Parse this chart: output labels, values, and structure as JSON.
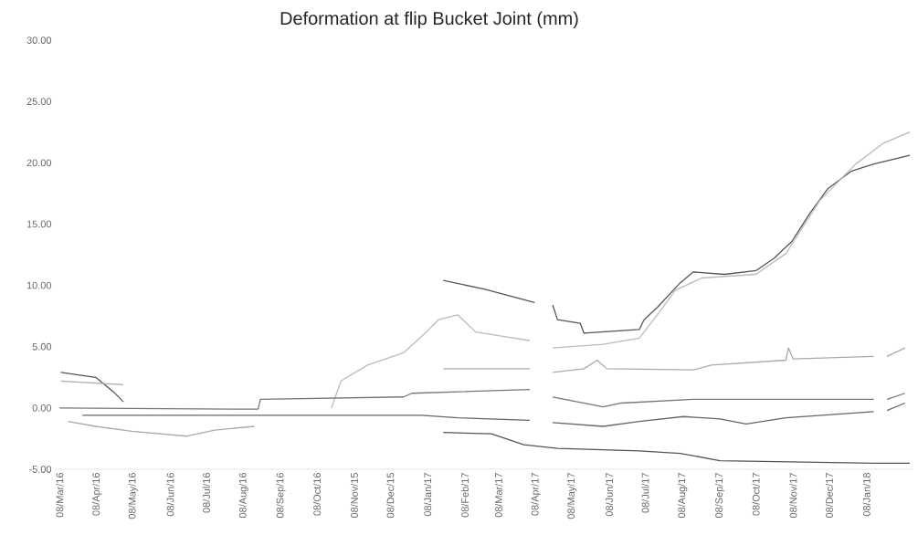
{
  "chart_data": {
    "type": "line",
    "title": "Deformation at flip Bucket Joint (mm)",
    "xlim": [
      "2016-03-04",
      "2018-02-16"
    ],
    "xticks": [
      {
        "value": "2016-03-08",
        "label": "08/Mar/16"
      },
      {
        "value": "2016-04-08",
        "label": "08/Apr/16"
      },
      {
        "value": "2016-05-08",
        "label": "08/May/16"
      },
      {
        "value": "2016-06-08",
        "label": "08/Jun/16"
      },
      {
        "value": "2016-07-08",
        "label": "08/Jul/16"
      },
      {
        "value": "2016-08-08",
        "label": "08/Aug/16"
      },
      {
        "value": "2016-09-08",
        "label": "08/Sep/16"
      },
      {
        "value": "2016-10-08",
        "label": "08/Oct/16"
      },
      {
        "value": "2016-11-08",
        "label": "08/Nov/15"
      },
      {
        "value": "2016-12-08",
        "label": "08/Dec/15"
      },
      {
        "value": "2017-01-08",
        "label": "08/Jan/17"
      },
      {
        "value": "2017-02-08",
        "label": "08/Feb/17"
      },
      {
        "value": "2017-03-08",
        "label": "08/Mar/17"
      },
      {
        "value": "2017-04-08",
        "label": "08/Apr/17"
      },
      {
        "value": "2017-05-08",
        "label": "08/May/17"
      },
      {
        "value": "2017-06-08",
        "label": "08/Jun/17"
      },
      {
        "value": "2017-07-08",
        "label": "08/Jul/17"
      },
      {
        "value": "2017-08-08",
        "label": "08/Aug/17"
      },
      {
        "value": "2017-09-08",
        "label": "08/Sep/17"
      },
      {
        "value": "2017-10-08",
        "label": "08/Oct/17"
      },
      {
        "value": "2017-11-08",
        "label": "08/Nov/17"
      },
      {
        "value": "2017-12-08",
        "label": "08/Dec/17"
      },
      {
        "value": "2018-01-08",
        "label": "08/Jan/18"
      }
    ],
    "ylim": [
      -5,
      30
    ],
    "yticks": [
      {
        "value": -5,
        "label": "-5.00"
      },
      {
        "value": 0,
        "label": "0.00"
      },
      {
        "value": 5,
        "label": "5.00"
      },
      {
        "value": 10,
        "label": "10.00"
      },
      {
        "value": 15,
        "label": "15.00"
      },
      {
        "value": 20,
        "label": "20.00"
      },
      {
        "value": 25,
        "label": "25.00"
      },
      {
        "value": 30,
        "label": "30.00"
      }
    ],
    "series": [
      {
        "color": "#555555",
        "x": [
          "2017-01-21",
          "2017-02-24",
          "2017-04-07",
          "2017-04-15",
          "2017-04-22",
          "2017-04-26",
          "2017-05-15",
          "2017-05-18",
          "2017-07-03",
          "2017-07-07",
          "2017-07-18",
          "2017-08-06",
          "2017-08-17",
          "2017-09-12",
          "2017-10-08",
          "2017-10-23",
          "2017-11-07",
          "2017-11-22",
          "2017-12-07",
          "2017-12-26",
          "2018-01-14",
          "2018-02-13"
        ],
        "values": [
          10.4,
          9.7,
          8.6,
          null,
          8.4,
          7.2,
          6.9,
          6.1,
          6.4,
          7.2,
          8.2,
          10.2,
          11.1,
          10.9,
          11.2,
          12.2,
          13.6,
          15.9,
          17.9,
          19.3,
          19.9,
          20.6
        ]
      },
      {
        "color": "#bbbbbb",
        "x": [
          "2016-10-20",
          "2016-10-28",
          "2016-11-19",
          "2016-12-19",
          "2017-01-07",
          "2017-01-17",
          "2017-02-02",
          "2017-02-17",
          "2017-03-08",
          "2017-04-03",
          "2017-04-15",
          "2017-04-22",
          "2017-06-03",
          "2017-07-03",
          "2017-07-18",
          "2017-08-02",
          "2017-08-24",
          "2017-10-08",
          "2017-11-02",
          "2017-11-30",
          "2017-12-30",
          "2018-01-22",
          "2018-02-13"
        ],
        "values": [
          0.0,
          2.2,
          3.5,
          4.5,
          6.2,
          7.2,
          7.6,
          6.2,
          5.9,
          5.5,
          null,
          4.9,
          5.2,
          5.7,
          7.6,
          9.6,
          10.6,
          10.9,
          12.6,
          16.9,
          19.9,
          21.6,
          22.5
        ]
      },
      {
        "color": "#aaaaaa",
        "x": [
          "2017-01-21",
          "2017-04-03",
          "2017-04-15",
          "2017-04-22",
          "2017-05-18",
          "2017-05-29",
          "2017-06-06",
          "2017-08-17",
          "2017-09-01",
          "2017-11-02",
          "2017-11-04",
          "2017-11-08",
          "2018-01-14",
          "2018-01-19",
          "2018-01-25",
          "2018-02-09"
        ],
        "values": [
          3.2,
          3.2,
          null,
          2.9,
          3.2,
          3.9,
          3.2,
          3.1,
          3.5,
          3.9,
          4.9,
          4.0,
          4.2,
          null,
          4.2,
          4.9
        ]
      },
      {
        "color": "#777777",
        "x": [
          "2016-03-08",
          "2016-08-20",
          "2016-08-22",
          "2016-12-19",
          "2016-12-26",
          "2017-04-03",
          "2017-04-15",
          "2017-04-22",
          "2017-06-03",
          "2017-06-18",
          "2017-08-17",
          "2018-01-14",
          "2018-01-19",
          "2018-01-25",
          "2018-02-09"
        ],
        "values": [
          0.0,
          -0.1,
          0.7,
          0.9,
          1.2,
          1.5,
          null,
          0.9,
          0.1,
          0.4,
          0.7,
          0.7,
          null,
          0.7,
          1.2
        ]
      },
      {
        "color": "#666666",
        "x": [
          "2016-03-27",
          "2017-01-03",
          "2017-02-02",
          "2017-04-03",
          "2017-04-15",
          "2017-04-22",
          "2017-06-03",
          "2017-07-03",
          "2017-08-09",
          "2017-09-08",
          "2017-09-30",
          "2017-11-02",
          "2018-01-14",
          "2018-01-19",
          "2018-01-25",
          "2018-02-09"
        ],
        "values": [
          -0.6,
          -0.6,
          -0.8,
          -1.0,
          null,
          -1.2,
          -1.5,
          -1.1,
          -0.7,
          -0.9,
          -1.3,
          -0.8,
          -0.3,
          null,
          -0.2,
          0.4
        ]
      },
      {
        "color": "#555555",
        "x": [
          "2017-01-21",
          "2017-03-02",
          "2017-03-29",
          "2017-04-26",
          "2017-07-03",
          "2017-08-06",
          "2017-09-08",
          "2018-01-14",
          "2018-02-13"
        ],
        "values": [
          -2.0,
          -2.1,
          -3.0,
          -3.3,
          -3.5,
          -3.7,
          -4.3,
          -4.5,
          -4.5
        ]
      },
      {
        "color": "#555555",
        "x": [
          "2016-03-09",
          "2016-04-07",
          "2016-04-22",
          "2016-04-30"
        ],
        "values": [
          2.9,
          2.5,
          1.3,
          0.5
        ]
      },
      {
        "color": "#aaaaaa",
        "x": [
          "2016-03-09",
          "2016-04-30"
        ],
        "values": [
          2.2,
          1.9
        ]
      },
      {
        "color": "#aaaaaa",
        "x": [
          "2016-03-15",
          "2016-04-07",
          "2016-05-07",
          "2016-06-22",
          "2016-07-15",
          "2016-08-17"
        ],
        "values": [
          -1.1,
          -1.5,
          -1.9,
          -2.3,
          -1.8,
          -1.5
        ]
      }
    ]
  }
}
